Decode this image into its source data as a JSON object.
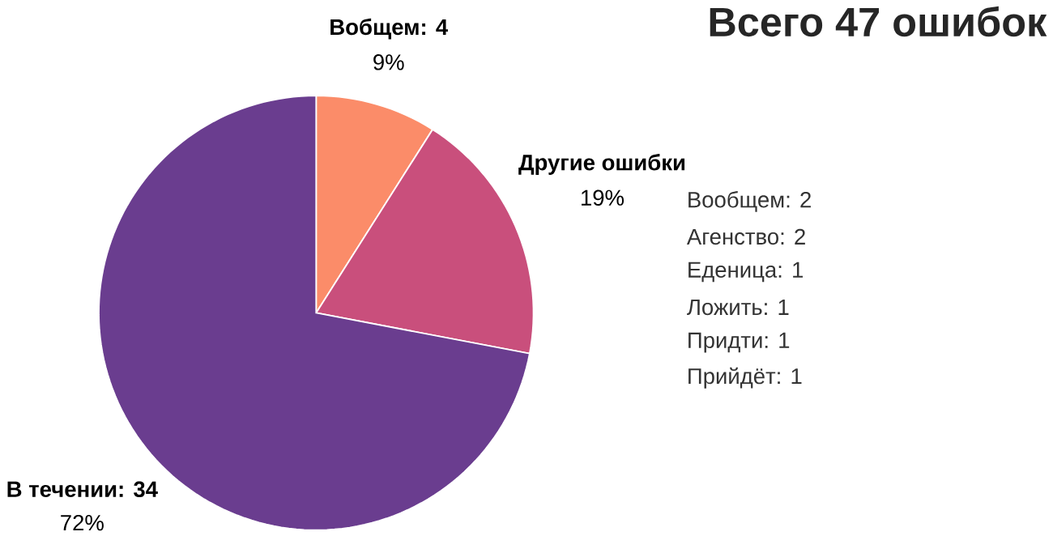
{
  "chart_data": {
    "type": "pie",
    "title": "Всего 47 ошибок",
    "categories": [
      "Вобщем: 4",
      "Другие ошибки",
      "В течении: 34"
    ],
    "values": [
      9,
      19,
      72
    ],
    "value_labels": [
      "9%",
      "19%",
      "72%"
    ],
    "colors": [
      "#fb8c69",
      "#c94f7c",
      "#6a3d8f"
    ],
    "annotations": [
      "Вообщем: 2",
      "Агенство: 2",
      "Еденица: 1",
      "Ложить: 1",
      "Придти: 1",
      "Прийдёт: 1"
    ]
  }
}
